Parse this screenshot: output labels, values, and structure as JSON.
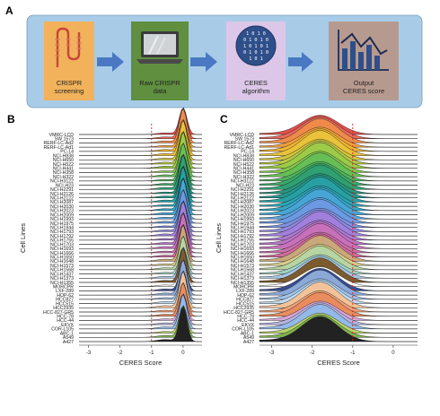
{
  "panel_a": {
    "letter": "A",
    "steps": [
      {
        "label_line1": "CRISPR",
        "label_line2": "screening",
        "icon": "dna-strand-icon",
        "bg": "#f1b25b"
      },
      {
        "label_line1": "Raw CRISPR",
        "label_line2": "data",
        "icon": "laptop-icon",
        "bg": "#5f8f3f"
      },
      {
        "label_line1": "CERES",
        "label_line2": "algorithm",
        "icon": "binary-globe-icon",
        "bg": "#dcc7e8"
      },
      {
        "label_line1": "Output",
        "label_line2": "CERES score",
        "icon": "bar-line-chart-icon",
        "bg": "#b79a8f"
      }
    ],
    "arrow_color": "#4a78c2",
    "box_bg": "#a8cbe8"
  },
  "panel_b": {
    "letter": "B"
  },
  "panel_c": {
    "letter": "C"
  },
  "chart_data": [
    {
      "type": "ridgeline",
      "panel": "B",
      "xlabel": "CERES Score",
      "ylabel": "Cell Lines",
      "xlim": [
        -3.3,
        0.6
      ],
      "xticks": [
        -3,
        -2,
        -1,
        0
      ],
      "reference_line_x": -1,
      "categories": [
        "VMRC-LCD",
        "SW 1573",
        "RERF-LC-Ad2",
        "RERF-LC-Ad1",
        "PC-14",
        "NCI-H838",
        "NCI-H650",
        "NCI-H522",
        "NCI-H441",
        "NCI-H358",
        "NCI-H322",
        "NCI-H3122",
        "NCI-H23",
        "NCI-H2291",
        "NCI-H2126",
        "NCI-H2122",
        "NCI-H2087",
        "NCI-H2030",
        "NCI-H2023",
        "NCI-H2009",
        "NCI-H1993",
        "NCI-H1975",
        "NCI-H1944",
        "NCI-H1793",
        "NCI-H1792",
        "NCI-H1755",
        "NCI-H1703",
        "NCI-H1693",
        "NCI-H1666",
        "NCI-H1650",
        "NCI-H1648",
        "NCI-H1573",
        "NCI-H1568",
        "NCI-H1437",
        "NCI-H1373",
        "NCI-H1355",
        "MORCPR",
        "LXF-289",
        "HOP-62",
        "HCC827",
        "HCC515",
        "HCC2935",
        "HCC-827-GR5",
        "HCC-78",
        "HCC-44",
        "EKVX",
        "COR-L105",
        "ABC-1",
        "A549",
        "A427"
      ],
      "peak_x": 0.0,
      "spread_sd": 0.12
    },
    {
      "type": "ridgeline",
      "panel": "C",
      "xlabel": "CERES Score",
      "ylabel": "Cell Lines",
      "xlim": [
        -3.3,
        0.6
      ],
      "xticks": [
        -3,
        -2,
        -1,
        0
      ],
      "reference_line_x": -1,
      "categories": [
        "VMRC-LCD",
        "SW 1573",
        "RERF-LC-Ad2",
        "RERF-LC-Ad1",
        "PC-14",
        "NCI-H838",
        "NCI-H650",
        "NCI-H522",
        "NCI-H441",
        "NCI-H358",
        "NCI-H322",
        "NCI-H3122",
        "NCI-H23",
        "NCI-H2291",
        "NCI-H2126",
        "NCI-H2122",
        "NCI-H2087",
        "NCI-H2030",
        "NCI-H2023",
        "NCI-H2009",
        "NCI-H1993",
        "NCI-H1975",
        "NCI-H1944",
        "NCI-H1793",
        "NCI-H1792",
        "NCI-H1755",
        "NCI-H1703",
        "NCI-H1693",
        "NCI-H1666",
        "NCI-H1650",
        "NCI-H1648",
        "NCI-H1573",
        "NCI-H1568",
        "NCI-H1437",
        "NCI-H1373",
        "NCI-H1355",
        "MORCPR",
        "LXF-289",
        "HOP-62",
        "HCC827",
        "HCC515",
        "HCC2935",
        "HCC-827-GR5",
        "HCC-78",
        "HCC-44",
        "EKVX",
        "COR-L105",
        "ABC-1",
        "A549",
        "A427"
      ],
      "peak_x": -1.8,
      "spread_sd": 0.45
    }
  ],
  "ridge_colors": [
    "#e4504f",
    "#e86a5a",
    "#ef8a4a",
    "#f2a23b",
    "#f3b632",
    "#e9c23a",
    "#d3c640",
    "#b6c944",
    "#9ccb48",
    "#82c74e",
    "#66bf56",
    "#4db65e",
    "#3bab68",
    "#2ea072",
    "#27977f",
    "#249a90",
    "#26a0a3",
    "#2ba5b6",
    "#36a7c7",
    "#46a5d4",
    "#5aa1de",
    "#6c9ae2",
    "#7e93e4",
    "#9089e1",
    "#a080dc",
    "#ae7ad3",
    "#bc75c8",
    "#c871bb",
    "#cf6fac",
    "#d16c9c",
    "#caa77a",
    "#d9cf8c",
    "#b7d5a2",
    "#9fd3c5",
    "#a6c5e4",
    "#7c5b2e",
    "#ffffff",
    "#3a4d8f",
    "#8ba8d9",
    "#a2c5e8",
    "#c0dbf0",
    "#f2c39a",
    "#f0a277",
    "#e98d5e",
    "#d7a7d8",
    "#b7b5e6",
    "#93b9e9",
    "#bcd56b",
    "#7db24f",
    "#222222"
  ]
}
